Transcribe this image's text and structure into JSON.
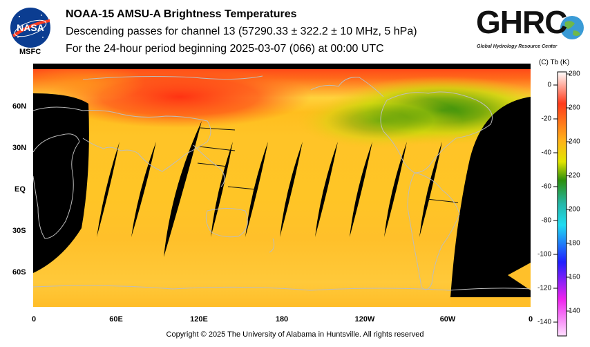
{
  "header": {
    "title": "NOAA-15 AMSU-A Brightness Temperatures",
    "subtitle": "Descending passes for channel 13 (57290.33 ± 322.2 ± 10 MHz, 5 hPa)",
    "period": "For the 24-hour period beginning 2025-03-07 (066) at 00:00 UTC"
  },
  "logos": {
    "nasa_text": "NASA",
    "nasa_center": "MSFC",
    "ghrc_text": "GHRC",
    "ghrc_subtitle": "Global Hydrology Resource Center"
  },
  "map": {
    "lat_labels": [
      "60N",
      "30N",
      "EQ",
      "30S",
      "60S"
    ],
    "lon_labels": [
      "0",
      "60E",
      "120E",
      "180",
      "120W",
      "60W",
      "0"
    ],
    "no_data_color": "#000000",
    "coastline_color": "#bdbdbd"
  },
  "colorbar": {
    "header": "(C)  Tb  (K)",
    "celsius_ticks": [
      "0",
      "-20",
      "-40",
      "-60",
      "-80",
      "-100",
      "-120",
      "-140"
    ],
    "kelvin_ticks": [
      "280",
      "260",
      "240",
      "220",
      "200",
      "180",
      "160",
      "140"
    ],
    "range_k": [
      130,
      280
    ],
    "colors": [
      "#ffffff",
      "#ff3a1a",
      "#ffb21a",
      "#e2e500",
      "#2c8f0b",
      "#25b7a8",
      "#1fdcf2",
      "#1f1fff",
      "#ee22ee",
      "#ffe0ff"
    ]
  },
  "footer": {
    "copyright": "Copyright © 2025 The University of Alabama in Huntsville.  All rights reserved"
  }
}
